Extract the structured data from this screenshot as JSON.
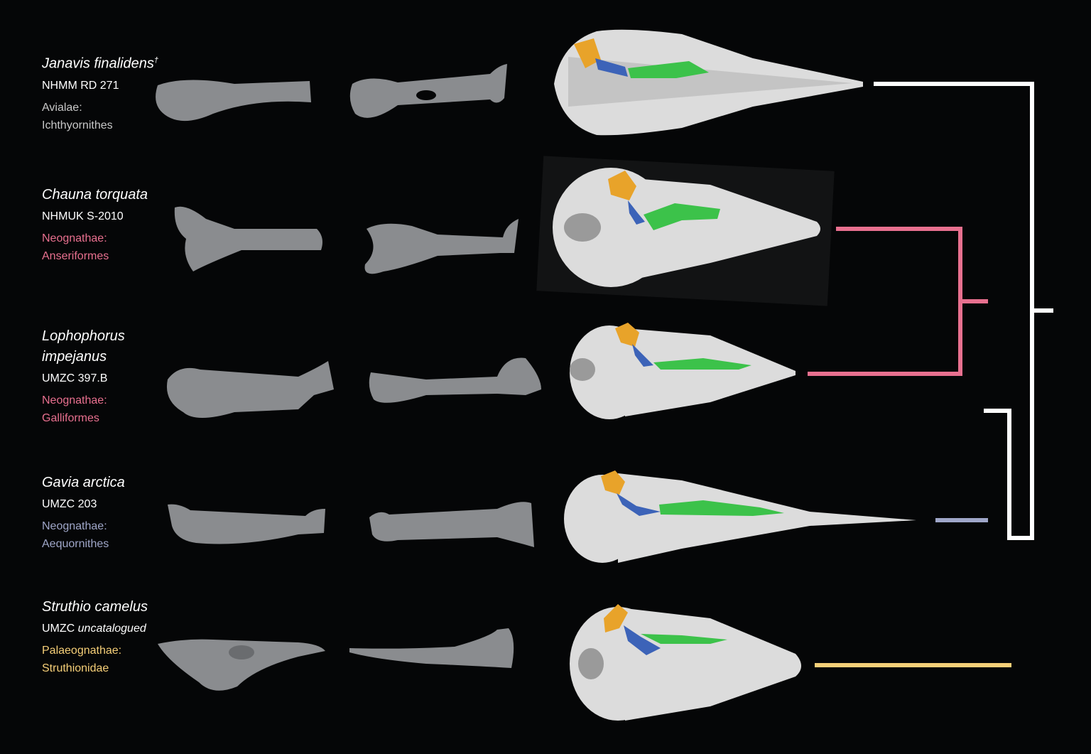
{
  "taxa": [
    {
      "species": "Janavis finalidens",
      "species_mark": "†",
      "specimen": "NHMM RD 271",
      "specimen_italic": "",
      "clade_group": "Avialae:",
      "clade_name": "Ichthyornithes",
      "clade_color": "#c8c8c8"
    },
    {
      "species": "Chauna torquata",
      "species_mark": "",
      "specimen": "NHMUK S-2010",
      "specimen_italic": "",
      "clade_group": "Neognathae:",
      "clade_name": "Anseriformes",
      "clade_color": "#e8708f"
    },
    {
      "species": "Lophophorus impejanus",
      "species_mark": "",
      "specimen": "UMZC 397.B",
      "specimen_italic": "",
      "clade_group": "Neognathae:",
      "clade_name": "Galliformes",
      "clade_color": "#e8708f"
    },
    {
      "species": "Gavia arctica",
      "species_mark": "",
      "specimen": "UMZC 203",
      "specimen_italic": "",
      "clade_group": "Neognathae:",
      "clade_name": "Aequornithes",
      "clade_color": "#9fa6c8"
    },
    {
      "species": "Struthio camelus",
      "species_mark": "",
      "specimen": "UMZC ",
      "specimen_italic": "uncatalogued",
      "clade_group": "Palaeognathae:",
      "clade_name": "Struthionidae",
      "clade_color": "#f6cf78"
    }
  ],
  "colors": {
    "background": "#050607",
    "bone_gray": "#8a8c8f",
    "skull_white": "#dcdcdc",
    "highlight_orange": "#e8a32a",
    "highlight_blue": "#3c63b8",
    "highlight_green": "#3cc24a",
    "tree_white": "#ffffff",
    "tree_pink": "#e8708f",
    "tree_lavender": "#9fa6c8",
    "tree_yellow": "#f6cf78"
  },
  "icons": {
    "bone_lateral": "pterygoid-bone-lateral-view",
    "bone_medial": "pterygoid-bone-medial-view",
    "skull": "skull-ventral-view",
    "tree": "phylogenetic-tree"
  }
}
